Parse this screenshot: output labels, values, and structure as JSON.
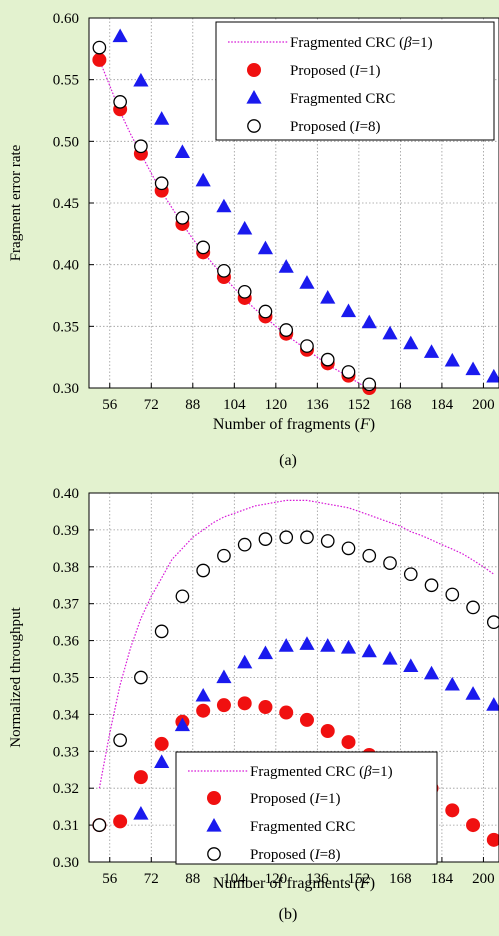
{
  "colors": {
    "background": "#e3f2cf",
    "plot_background": "#ffffff",
    "grid": "#9a9a9a",
    "dotted_line": "#d81bd8",
    "red_series": "#f01010",
    "blue_series": "#1a1aee",
    "open_series": "#000000"
  },
  "chart_data": [
    {
      "type": "scatter",
      "caption": "(a)",
      "xlabel_prefix": "Number of fragments (",
      "xlabel_var": "F",
      "xlabel_suffix": ")",
      "ylabel": "Fragment error rate",
      "xlim": [
        48,
        206
      ],
      "ylim": [
        0.3,
        0.6
      ],
      "xticks": [
        56,
        72,
        88,
        104,
        120,
        136,
        152,
        168,
        184,
        200
      ],
      "yticks": [
        0.3,
        0.35,
        0.4,
        0.45,
        0.5,
        0.55,
        0.6
      ],
      "grid": true,
      "legend_position": "top-right",
      "legend": [
        {
          "pre": "Fragmented CRC (",
          "var": "β",
          "post": "=1)"
        },
        {
          "pre": "Proposed (",
          "var": "I",
          "post": "=1)"
        },
        {
          "pre": "Fragmented CRC",
          "var": "",
          "post": ""
        },
        {
          "pre": "Proposed (",
          "var": "I",
          "post": "=8)"
        }
      ],
      "series": [
        {
          "style": "dotted",
          "x": [
            52,
            56,
            60,
            64,
            68,
            72,
            76,
            80,
            84,
            88,
            92,
            96,
            100,
            104,
            108,
            112,
            116,
            120,
            124,
            128,
            132,
            136,
            140,
            144,
            148,
            152,
            156
          ],
          "values": [
            0.566,
            0.545,
            0.524,
            0.506,
            0.49,
            0.474,
            0.459,
            0.446,
            0.433,
            0.421,
            0.41,
            0.4,
            0.39,
            0.381,
            0.372,
            0.364,
            0.357,
            0.35,
            0.343,
            0.337,
            0.331,
            0.325,
            0.319,
            0.314,
            0.309,
            0.304,
            0.299
          ]
        },
        {
          "style": "red",
          "x": [
            52,
            60,
            68,
            76,
            84,
            92,
            100,
            108,
            116,
            124,
            132,
            140,
            148,
            156
          ],
          "values": [
            0.566,
            0.526,
            0.49,
            0.46,
            0.433,
            0.41,
            0.39,
            0.373,
            0.358,
            0.344,
            0.331,
            0.32,
            0.31,
            0.3
          ]
        },
        {
          "style": "blue",
          "x": [
            60,
            68,
            76,
            84,
            92,
            100,
            108,
            116,
            124,
            132,
            140,
            148,
            156,
            164,
            172,
            180,
            188,
            196,
            204
          ],
          "values": [
            0.585,
            0.549,
            0.518,
            0.491,
            0.468,
            0.447,
            0.429,
            0.413,
            0.398,
            0.385,
            0.373,
            0.362,
            0.353,
            0.344,
            0.336,
            0.329,
            0.322,
            0.315,
            0.309
          ]
        },
        {
          "style": "open",
          "x": [
            52,
            60,
            68,
            76,
            84,
            92,
            100,
            108,
            116,
            124,
            132,
            140,
            148,
            156
          ],
          "values": [
            0.576,
            0.532,
            0.496,
            0.466,
            0.438,
            0.414,
            0.395,
            0.378,
            0.362,
            0.347,
            0.334,
            0.323,
            0.313,
            0.303
          ]
        }
      ]
    },
    {
      "type": "scatter",
      "caption": "(b)",
      "xlabel_prefix": "Number of fragments (",
      "xlabel_var": "F",
      "xlabel_suffix": ")",
      "ylabel": "Normalized throughput",
      "xlim": [
        48,
        206
      ],
      "ylim": [
        0.3,
        0.4
      ],
      "xticks": [
        56,
        72,
        88,
        104,
        120,
        136,
        152,
        168,
        184,
        200
      ],
      "yticks": [
        0.3,
        0.31,
        0.32,
        0.33,
        0.34,
        0.35,
        0.36,
        0.37,
        0.38,
        0.39,
        0.4
      ],
      "grid": true,
      "legend_position": "bottom-center",
      "legend": [
        {
          "pre": "Fragmented CRC (",
          "var": "β",
          "post": "=1)"
        },
        {
          "pre": "Proposed (",
          "var": "I",
          "post": "=1)"
        },
        {
          "pre": "Fragmented CRC",
          "var": "",
          "post": ""
        },
        {
          "pre": "Proposed (",
          "var": "I",
          "post": "=8)"
        }
      ],
      "series": [
        {
          "style": "dotted",
          "x": [
            52,
            56,
            60,
            64,
            68,
            72,
            76,
            80,
            84,
            88,
            92,
            96,
            100,
            104,
            108,
            112,
            116,
            120,
            124,
            128,
            132,
            136,
            140,
            144,
            148,
            152,
            156,
            160,
            164,
            168,
            172,
            176,
            180,
            184,
            188,
            192,
            196,
            200,
            204
          ],
          "values": [
            0.32,
            0.335,
            0.348,
            0.358,
            0.366,
            0.372,
            0.377,
            0.382,
            0.385,
            0.388,
            0.39,
            0.392,
            0.3935,
            0.3945,
            0.3955,
            0.3965,
            0.397,
            0.3975,
            0.398,
            0.398,
            0.398,
            0.3975,
            0.397,
            0.3965,
            0.396,
            0.395,
            0.394,
            0.393,
            0.392,
            0.391,
            0.3895,
            0.3885,
            0.3873,
            0.386,
            0.3848,
            0.3835,
            0.3818,
            0.38,
            0.378
          ]
        },
        {
          "style": "red",
          "x": [
            52,
            60,
            68,
            76,
            84,
            92,
            100,
            108,
            116,
            124,
            132,
            140,
            148,
            156,
            164,
            172,
            180,
            188,
            196,
            204
          ],
          "values": [
            0.31,
            0.311,
            0.323,
            0.332,
            0.338,
            0.341,
            0.3425,
            0.343,
            0.342,
            0.3405,
            0.3385,
            0.3355,
            0.3325,
            0.329,
            0.326,
            0.323,
            0.32,
            0.314,
            0.31,
            0.306
          ]
        },
        {
          "style": "blue",
          "x": [
            68,
            76,
            84,
            92,
            100,
            108,
            116,
            124,
            132,
            140,
            148,
            156,
            164,
            172,
            180,
            188,
            196,
            204
          ],
          "values": [
            0.313,
            0.327,
            0.337,
            0.345,
            0.35,
            0.354,
            0.3565,
            0.3585,
            0.359,
            0.3585,
            0.358,
            0.357,
            0.355,
            0.353,
            0.351,
            0.348,
            0.3455,
            0.3425
          ]
        },
        {
          "style": "open",
          "x": [
            52,
            60,
            68,
            76,
            84,
            92,
            100,
            108,
            116,
            124,
            132,
            140,
            148,
            156,
            164,
            172,
            180,
            188,
            196,
            204
          ],
          "values": [
            0.31,
            0.333,
            0.35,
            0.3625,
            0.372,
            0.379,
            0.383,
            0.386,
            0.3875,
            0.388,
            0.388,
            0.387,
            0.385,
            0.383,
            0.381,
            0.378,
            0.375,
            0.3725,
            0.369,
            0.365
          ]
        }
      ]
    }
  ]
}
